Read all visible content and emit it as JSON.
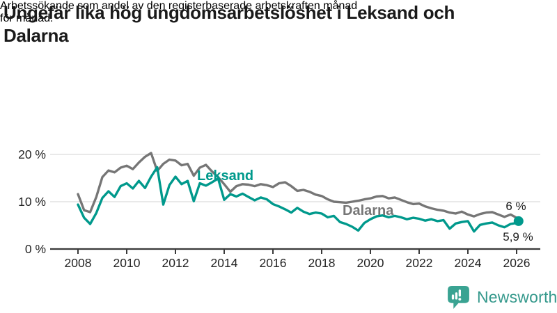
{
  "branding": {
    "logo_text": "Newsworthy",
    "logo_color": "#3aa392",
    "logo_text_color": "#35998c",
    "logo_icon": "bar-chart-speech-bubble-icon"
  },
  "chart_data": {
    "type": "line",
    "title": "Ungefär lika hög ungdomsarbetslöshet i Leksand och Dalarna",
    "title_lines": [
      "Ungefär lika hög ungdomsarbetslöshet i Leksand och",
      "Dalarna"
    ],
    "subtitle": "Arbetssökande som andel av den registerbaserade arbetskraften månad för månad.",
    "subtitle_lines": [
      "Arbetssökande som andel av den registerbaserade arbetskraften månad",
      "för månad."
    ],
    "x_unit": "year",
    "x_start": 2008.0,
    "x_step_years": 0.25,
    "x_end": 2026.08,
    "x_ticks": [
      2008,
      2010,
      2012,
      2014,
      2016,
      2018,
      2020,
      2022,
      2024,
      2026
    ],
    "y_ticks": [
      {
        "value": 0,
        "label": "0 %"
      },
      {
        "value": 10,
        "label": "10 %"
      },
      {
        "value": 20,
        "label": "20 %"
      }
    ],
    "ylim": [
      0,
      21.5
    ],
    "grid": "horizontal",
    "legend_position": "inline-labels",
    "colors": {
      "axis": "#3a3a3a",
      "grid": "#dcdcdc",
      "tick_text": "#242424"
    },
    "series": [
      {
        "name": "Dalarna",
        "color": "#767676",
        "end_label": "6 %",
        "end_value": 6.0,
        "marker_end": false,
        "values": [
          11.6,
          8.2,
          7.8,
          11.0,
          15.2,
          16.6,
          16.2,
          17.2,
          17.6,
          16.9,
          18.3,
          19.5,
          20.3,
          16.5,
          18.0,
          18.9,
          18.7,
          17.7,
          18.0,
          15.5,
          17.2,
          17.8,
          16.4,
          15.2,
          13.7,
          12.1,
          13.3,
          13.7,
          13.6,
          13.3,
          13.7,
          13.5,
          13.1,
          13.9,
          14.1,
          13.3,
          12.3,
          12.5,
          12.1,
          11.5,
          11.2,
          10.5,
          10.0,
          9.9,
          9.8,
          10.0,
          10.2,
          10.5,
          10.7,
          11.1,
          11.2,
          10.7,
          10.9,
          10.4,
          9.9,
          9.5,
          9.6,
          9.0,
          8.6,
          8.3,
          8.1,
          7.7,
          7.5,
          7.9,
          7.3,
          6.9,
          7.4,
          7.7,
          7.8,
          7.3,
          6.8,
          7.3,
          6.6,
          6.0
        ]
      },
      {
        "name": "Leksand",
        "color": "#00998c",
        "end_label": "5,9 %",
        "end_value": 5.9,
        "marker_end": true,
        "values": [
          9.4,
          6.6,
          5.3,
          7.6,
          10.8,
          12.2,
          11.0,
          13.3,
          13.9,
          12.8,
          14.4,
          12.9,
          15.3,
          17.3,
          9.4,
          13.5,
          15.3,
          13.7,
          14.4,
          10.1,
          13.9,
          13.4,
          14.1,
          14.9,
          10.4,
          11.6,
          11.1,
          11.7,
          11.0,
          10.3,
          10.9,
          10.5,
          9.5,
          9.0,
          8.4,
          7.7,
          8.7,
          7.9,
          7.4,
          7.7,
          7.5,
          6.7,
          7.0,
          5.7,
          5.3,
          4.7,
          3.9,
          5.5,
          6.3,
          6.9,
          7.1,
          6.7,
          7.0,
          6.7,
          6.3,
          6.6,
          6.4,
          6.0,
          6.3,
          5.9,
          6.1,
          4.3,
          5.4,
          5.7,
          5.9,
          3.7,
          5.1,
          5.4,
          5.6,
          5.0,
          4.6,
          5.3,
          5.5,
          5.9
        ]
      }
    ]
  }
}
